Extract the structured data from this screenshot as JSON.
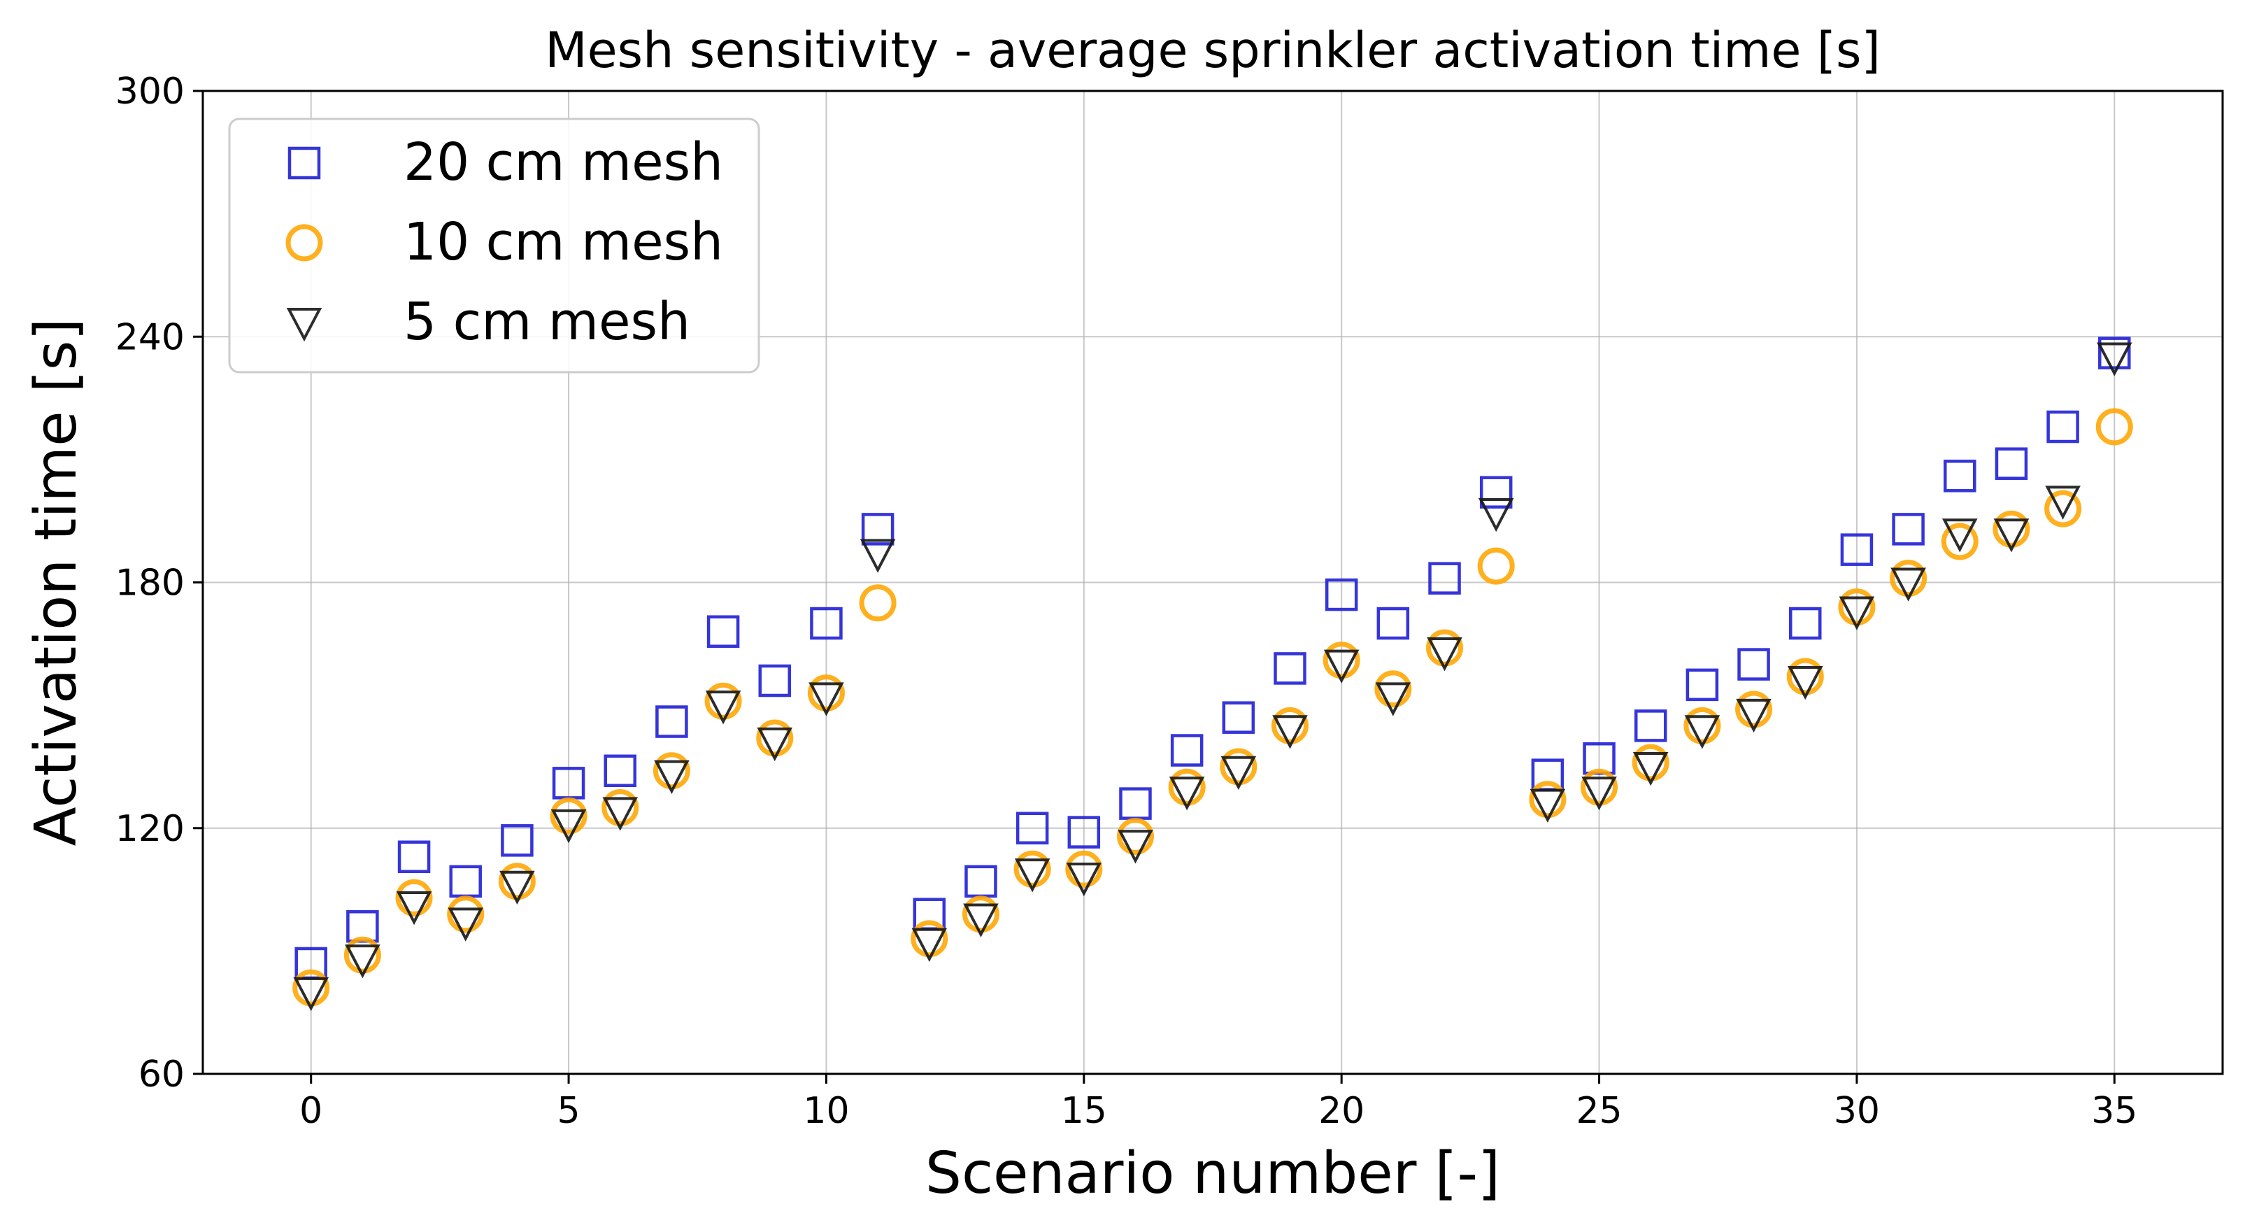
{
  "colors": {
    "background": "#ffffff",
    "axes": "#000000",
    "grid": "#b0b0b0",
    "series_20cm": "#1f1fd6",
    "series_10cm": "#ffa500",
    "series_5cm": "#1a1a1a"
  },
  "chart_data": {
    "type": "scatter",
    "title": "Mesh sensitivity - average sprinkler activation time [s]",
    "xlabel": "Scenario number [-]",
    "ylabel": "Activation time [s]",
    "xlim": [
      -2.1,
      37.1
    ],
    "ylim": [
      60,
      300
    ],
    "xticks": [
      0,
      5,
      10,
      15,
      20,
      25,
      30,
      35
    ],
    "yticks": [
      60,
      120,
      180,
      240,
      300
    ],
    "grid": true,
    "legend_position": "top-left",
    "x": [
      0,
      1,
      2,
      3,
      4,
      5,
      6,
      7,
      8,
      9,
      10,
      11,
      12,
      13,
      14,
      15,
      16,
      17,
      18,
      19,
      20,
      21,
      22,
      23,
      24,
      25,
      26,
      27,
      28,
      29,
      30,
      31,
      32,
      33,
      34,
      35
    ],
    "series": [
      {
        "name": "20 cm mesh",
        "marker": "square",
        "color": "#1f1fd6",
        "values": [
          87,
          96,
          113,
          107,
          117,
          131,
          134,
          146,
          168,
          156,
          170,
          193,
          99,
          107,
          120,
          119,
          126,
          139,
          147,
          159,
          177,
          170,
          181,
          202,
          133,
          137,
          145,
          155,
          160,
          170,
          188,
          193,
          206,
          209,
          218,
          236
        ]
      },
      {
        "name": "10 cm mesh",
        "marker": "circle",
        "color": "#ffa500",
        "values": [
          81,
          89,
          103,
          99,
          107,
          123,
          125,
          134,
          151,
          142,
          153,
          175,
          93,
          99,
          110,
          110,
          118,
          130,
          135,
          145,
          161,
          154,
          164,
          184,
          127,
          130,
          136,
          145,
          149,
          157,
          174,
          181,
          190,
          193,
          198,
          218
        ]
      },
      {
        "name": "5 cm mesh",
        "marker": "triangle-down",
        "color": "#1a1a1a",
        "values": [
          80,
          88,
          101,
          97,
          106,
          121,
          124,
          133,
          150,
          141,
          152,
          187,
          92,
          98,
          109,
          108,
          116,
          129,
          134,
          144,
          160,
          152,
          163,
          197,
          126,
          129,
          135,
          144,
          148,
          156,
          173,
          180,
          192,
          192,
          200,
          235
        ]
      }
    ]
  }
}
